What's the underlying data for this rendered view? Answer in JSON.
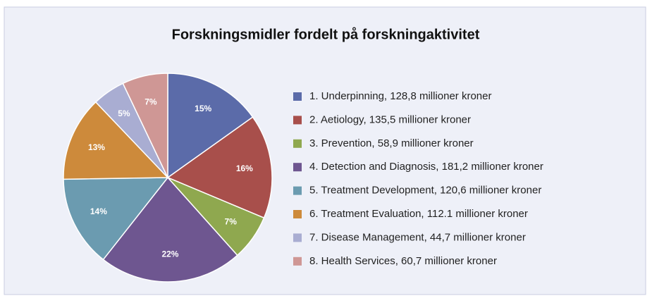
{
  "chart_data": {
    "type": "pie",
    "title": "Forskningsmidler fordelt på forskningaktivitet",
    "categories": [
      "1. Underpinning, 128,8 millioner kroner",
      "2. Aetiology, 135,5 millioner kroner",
      "3. Prevention, 58,9 millioner kroner",
      "4. Detection and Diagnosis, 181,2 millioner kroner",
      "5. Treatment Development, 120,6 millioner kroner",
      "6. Treatment Evaluation, 112.1 millioner kroner",
      "7. Disease Management, 44,7 millioner kroner",
      "8. Health Services, 60,7 millioner kroner"
    ],
    "values": [
      15,
      16,
      7,
      22,
      14,
      13,
      5,
      7
    ],
    "value_labels": [
      "15%",
      "16%",
      "7%",
      "22%",
      "14%",
      "13%",
      "5%",
      "7%"
    ],
    "colors": [
      "#5b6ba9",
      "#a84f4b",
      "#8fa84f",
      "#6e5690",
      "#6b9bb0",
      "#cd8a3b",
      "#a9add2",
      "#cf9795"
    ],
    "legend": "right"
  }
}
